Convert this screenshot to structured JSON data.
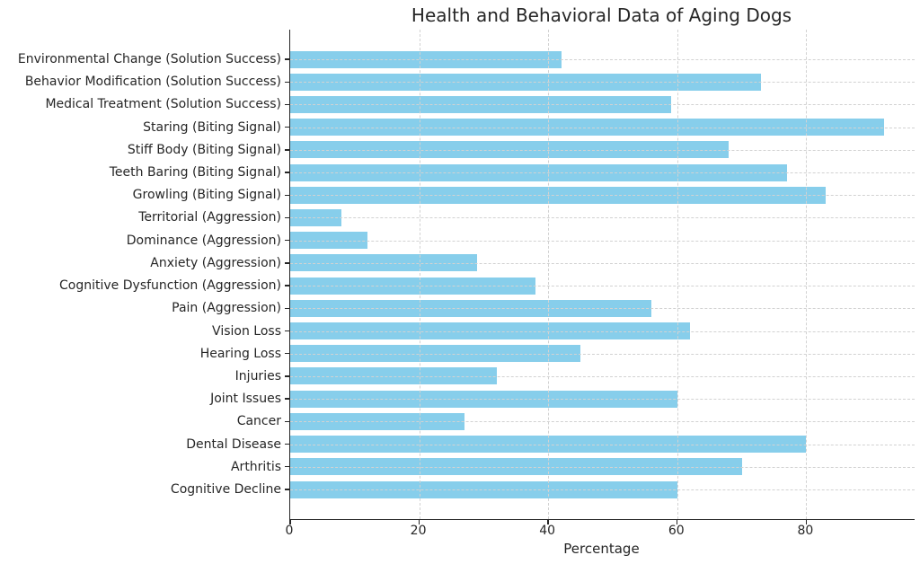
{
  "chart_data": {
    "type": "bar",
    "orientation": "horizontal",
    "title": "Health and Behavioral Data of Aging Dogs",
    "xlabel": "Percentage",
    "ylabel": "",
    "categories": [
      "Environmental Change (Solution Success)",
      "Behavior Modification (Solution Success)",
      "Medical Treatment (Solution Success)",
      "Staring (Biting Signal)",
      "Stiff Body (Biting Signal)",
      "Teeth Baring (Biting Signal)",
      "Growling (Biting Signal)",
      "Territorial (Aggression)",
      "Dominance (Aggression)",
      "Anxiety (Aggression)",
      "Cognitive Dysfunction (Aggression)",
      "Pain (Aggression)",
      "Vision Loss",
      "Hearing Loss",
      "Injuries",
      "Joint Issues",
      "Cancer",
      "Dental Disease",
      "Arthritis",
      "Cognitive Decline"
    ],
    "values": [
      42,
      73,
      59,
      92,
      68,
      77,
      83,
      8,
      12,
      29,
      38,
      56,
      62,
      45,
      32,
      60,
      27,
      80,
      70,
      60
    ],
    "xlim": [
      0,
      96.8
    ],
    "xticks": [
      0,
      20,
      40,
      60,
      80
    ],
    "grid": true,
    "grid_style": "dashed",
    "bar_color": "#87CEEB",
    "grid_color": "#d2d2d2",
    "text_color": "#262626",
    "background": "#FFFFFF"
  }
}
